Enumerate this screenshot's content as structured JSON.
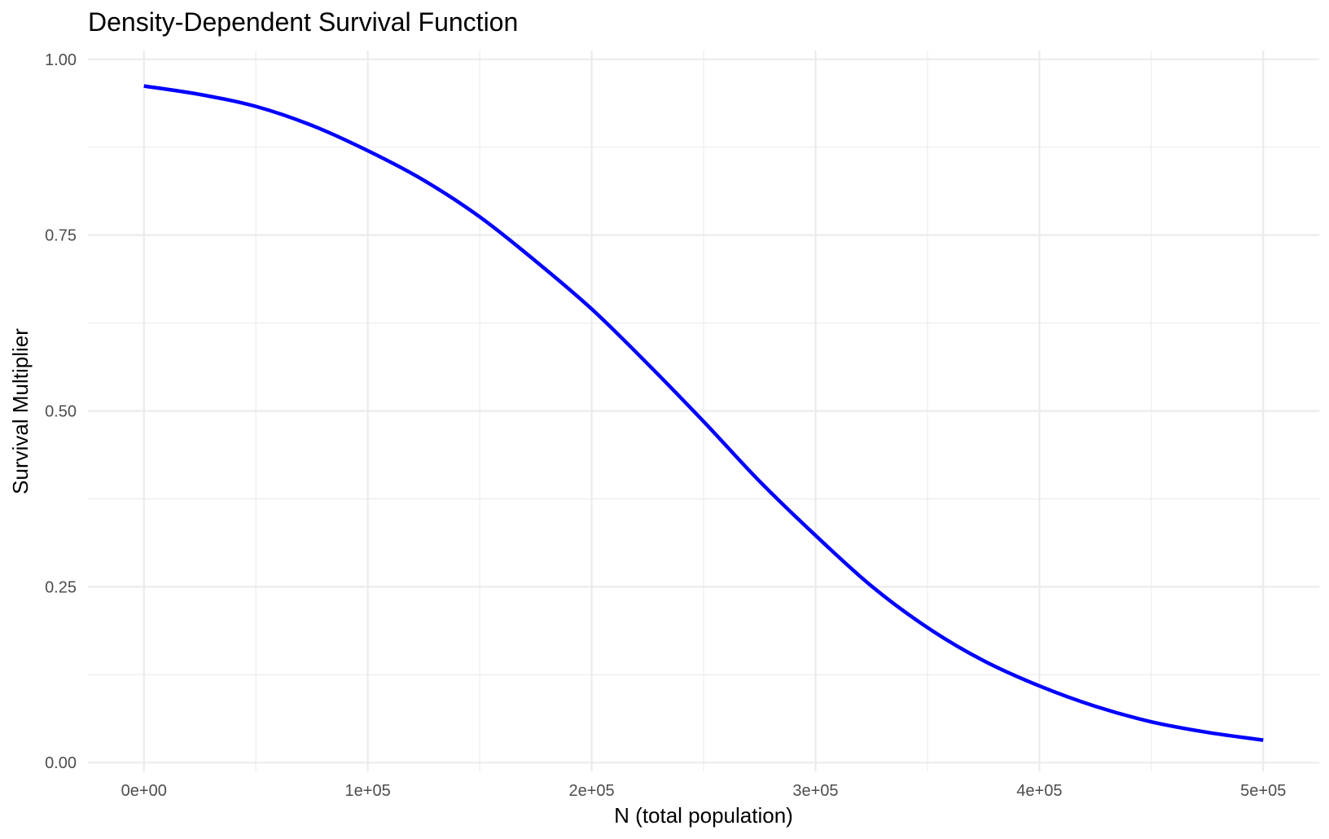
{
  "chart_data": {
    "type": "line",
    "title": "Density-Dependent Survival Function",
    "xlabel": "N (total population)",
    "ylabel": "Survival Multiplier",
    "xlim": [
      -25000,
      525000
    ],
    "ylim": [
      -0.0125,
      1.0125
    ],
    "x_ticks": [
      0,
      100000,
      200000,
      300000,
      400000,
      500000
    ],
    "x_tick_labels": [
      "0e+00",
      "1e+05",
      "2e+05",
      "3e+05",
      "4e+05",
      "5e+05"
    ],
    "x_minor_ticks": [
      50000,
      150000,
      250000,
      350000,
      450000
    ],
    "y_ticks": [
      0,
      0.25,
      0.5,
      0.75,
      1.0
    ],
    "y_tick_labels": [
      "0.00",
      "0.25",
      "0.50",
      "0.75",
      "1.00"
    ],
    "y_minor_ticks": [
      0.125,
      0.375,
      0.625,
      0.875
    ],
    "grid": true,
    "line_color": "#0000ff",
    "series": [
      {
        "x": [
          0,
          25000,
          50000,
          75000,
          100000,
          125000,
          150000,
          175000,
          200000,
          225000,
          250000,
          275000,
          300000,
          325000,
          350000,
          375000,
          400000,
          425000,
          450000,
          475000,
          500000
        ],
        "values": [
          0.962,
          0.95,
          0.933,
          0.906,
          0.87,
          0.828,
          0.776,
          0.713,
          0.645,
          0.567,
          0.485,
          0.4,
          0.323,
          0.251,
          0.192,
          0.145,
          0.109,
          0.08,
          0.058,
          0.043,
          0.032
        ]
      }
    ]
  }
}
